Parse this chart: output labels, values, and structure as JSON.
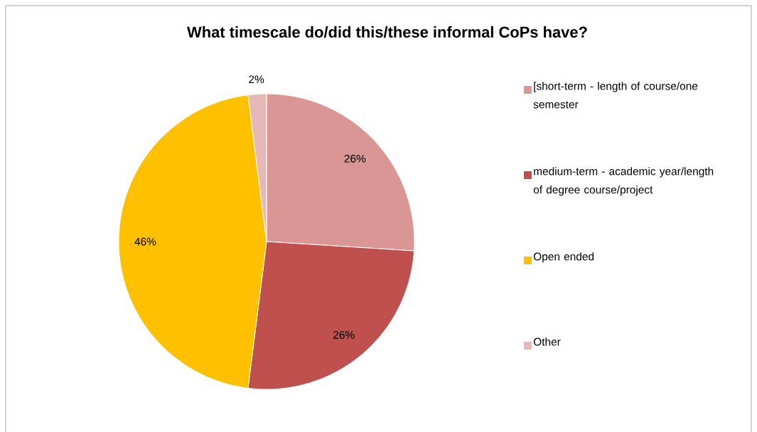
{
  "chart_data": {
    "type": "pie",
    "title": "What timescale do/did this/these informal CoPs have?",
    "categories": [
      "[short-term - length of course/one semester",
      "medium-term - academic year/length of degree course/project",
      "Open ended",
      "Other"
    ],
    "values": [
      26,
      26,
      46,
      2
    ],
    "value_labels": [
      "26%",
      "26%",
      "46%",
      "2%"
    ],
    "colors": [
      "#d99694",
      "#c0504d",
      "#ffc000",
      "#e6b9b8"
    ],
    "legend": "right"
  }
}
